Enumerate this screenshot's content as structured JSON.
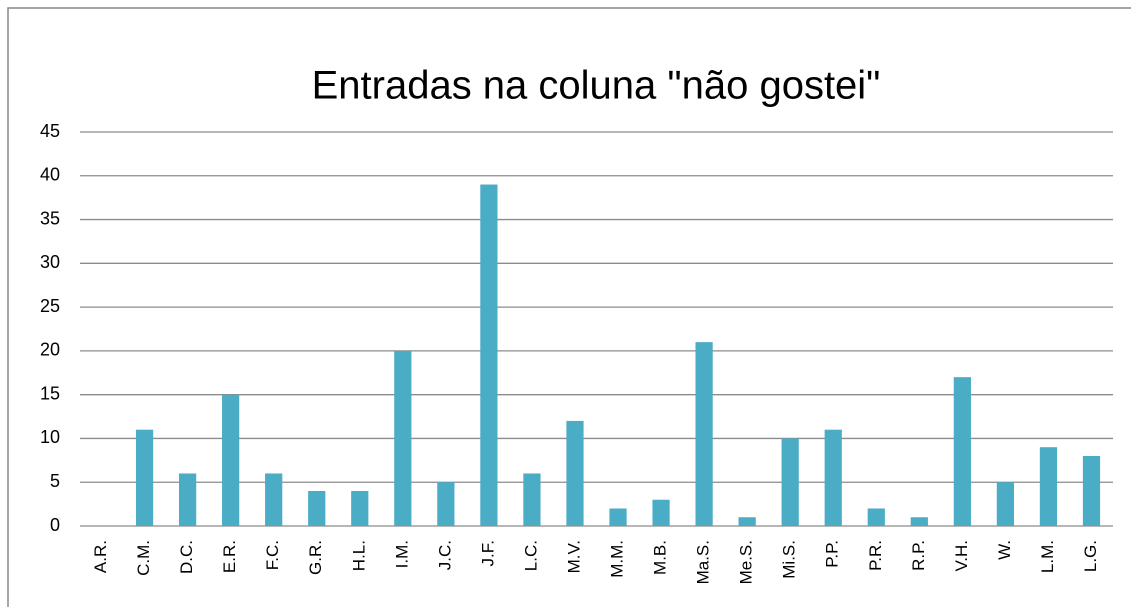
{
  "chart_data": {
    "type": "bar",
    "title": "Entradas na coluna \"não gostei\"",
    "categories": [
      "A.R.",
      "C.M.",
      "D.C.",
      "E.R.",
      "F.C.",
      "G.R.",
      "H.L.",
      "I.M.",
      "J.C.",
      "J.F.",
      "L.C.",
      "M.V.",
      "M.M.",
      "M.B.",
      "Ma.S.",
      "Me.S.",
      "Mi.S.",
      "P.P.",
      "P.R.",
      "R.P.",
      "V.H.",
      "W.",
      "L.M.",
      "L.G."
    ],
    "values": [
      0,
      11,
      6,
      15,
      6,
      4,
      4,
      20,
      5,
      39,
      6,
      12,
      2,
      3,
      21,
      1,
      10,
      11,
      2,
      1,
      17,
      5,
      9,
      8
    ],
    "color": "#4bacc6",
    "ylim": [
      0,
      45
    ],
    "yticks": [
      0,
      5,
      10,
      15,
      20,
      25,
      30,
      35,
      40,
      45
    ],
    "grid": true
  }
}
